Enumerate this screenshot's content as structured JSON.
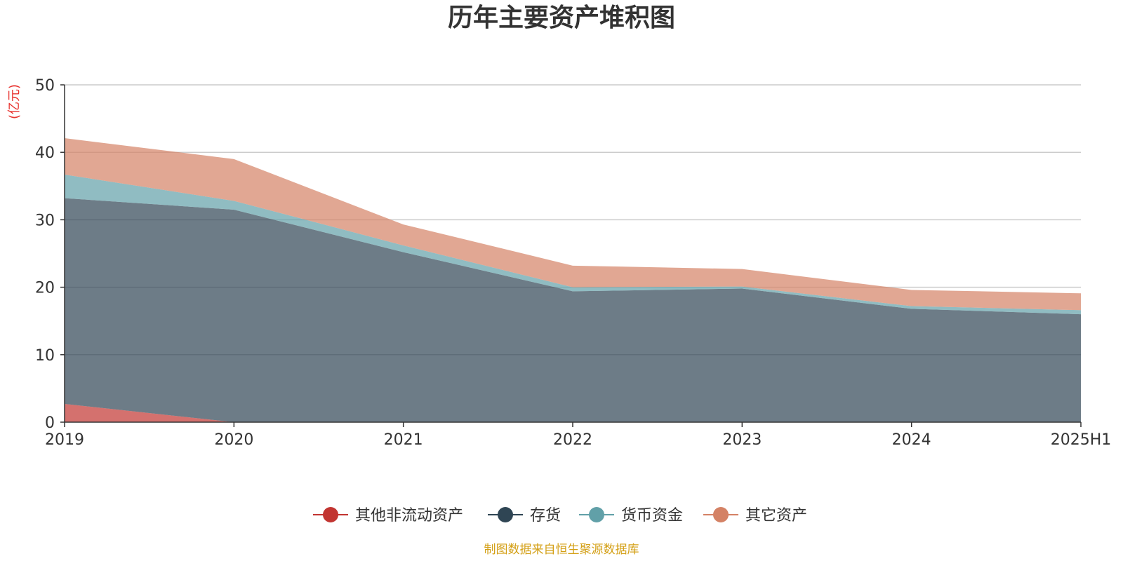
{
  "chart_data": {
    "type": "area",
    "stacked": true,
    "title": "历年主要资产堆积图",
    "unit_label": "(亿元)",
    "xlabel": "",
    "ylabel": "",
    "x": [
      "2019",
      "2020",
      "2021",
      "2022",
      "2023",
      "2024",
      "2025H1"
    ],
    "ylim": [
      0,
      50
    ],
    "yticks": [
      "0",
      "10",
      "20",
      "30",
      "40",
      "50"
    ],
    "grid": true,
    "legend_position": "bottom",
    "series": [
      {
        "name": "其他非流动资产",
        "color": "#c23531",
        "values": [
          2.7,
          0,
          0,
          0,
          0,
          0,
          0
        ]
      },
      {
        "name": "存货",
        "color": "#2f4554",
        "values": [
          30.5,
          31.5,
          25.2,
          19.4,
          19.8,
          16.8,
          16.0
        ]
      },
      {
        "name": "货币资金",
        "color": "#61a0a8",
        "values": [
          3.5,
          1.3,
          1.0,
          0.6,
          0.3,
          0.4,
          0.6
        ]
      },
      {
        "name": "其它资产",
        "color": "#d48265",
        "values": [
          5.4,
          6.2,
          3.1,
          3.2,
          2.6,
          2.4,
          2.5
        ]
      }
    ],
    "source": "制图数据来自恒生聚源数据库"
  },
  "colors": {
    "unit_label": "#e8332f",
    "source": "#d4a017",
    "grid": "#cccccc",
    "axis": "#333333"
  }
}
